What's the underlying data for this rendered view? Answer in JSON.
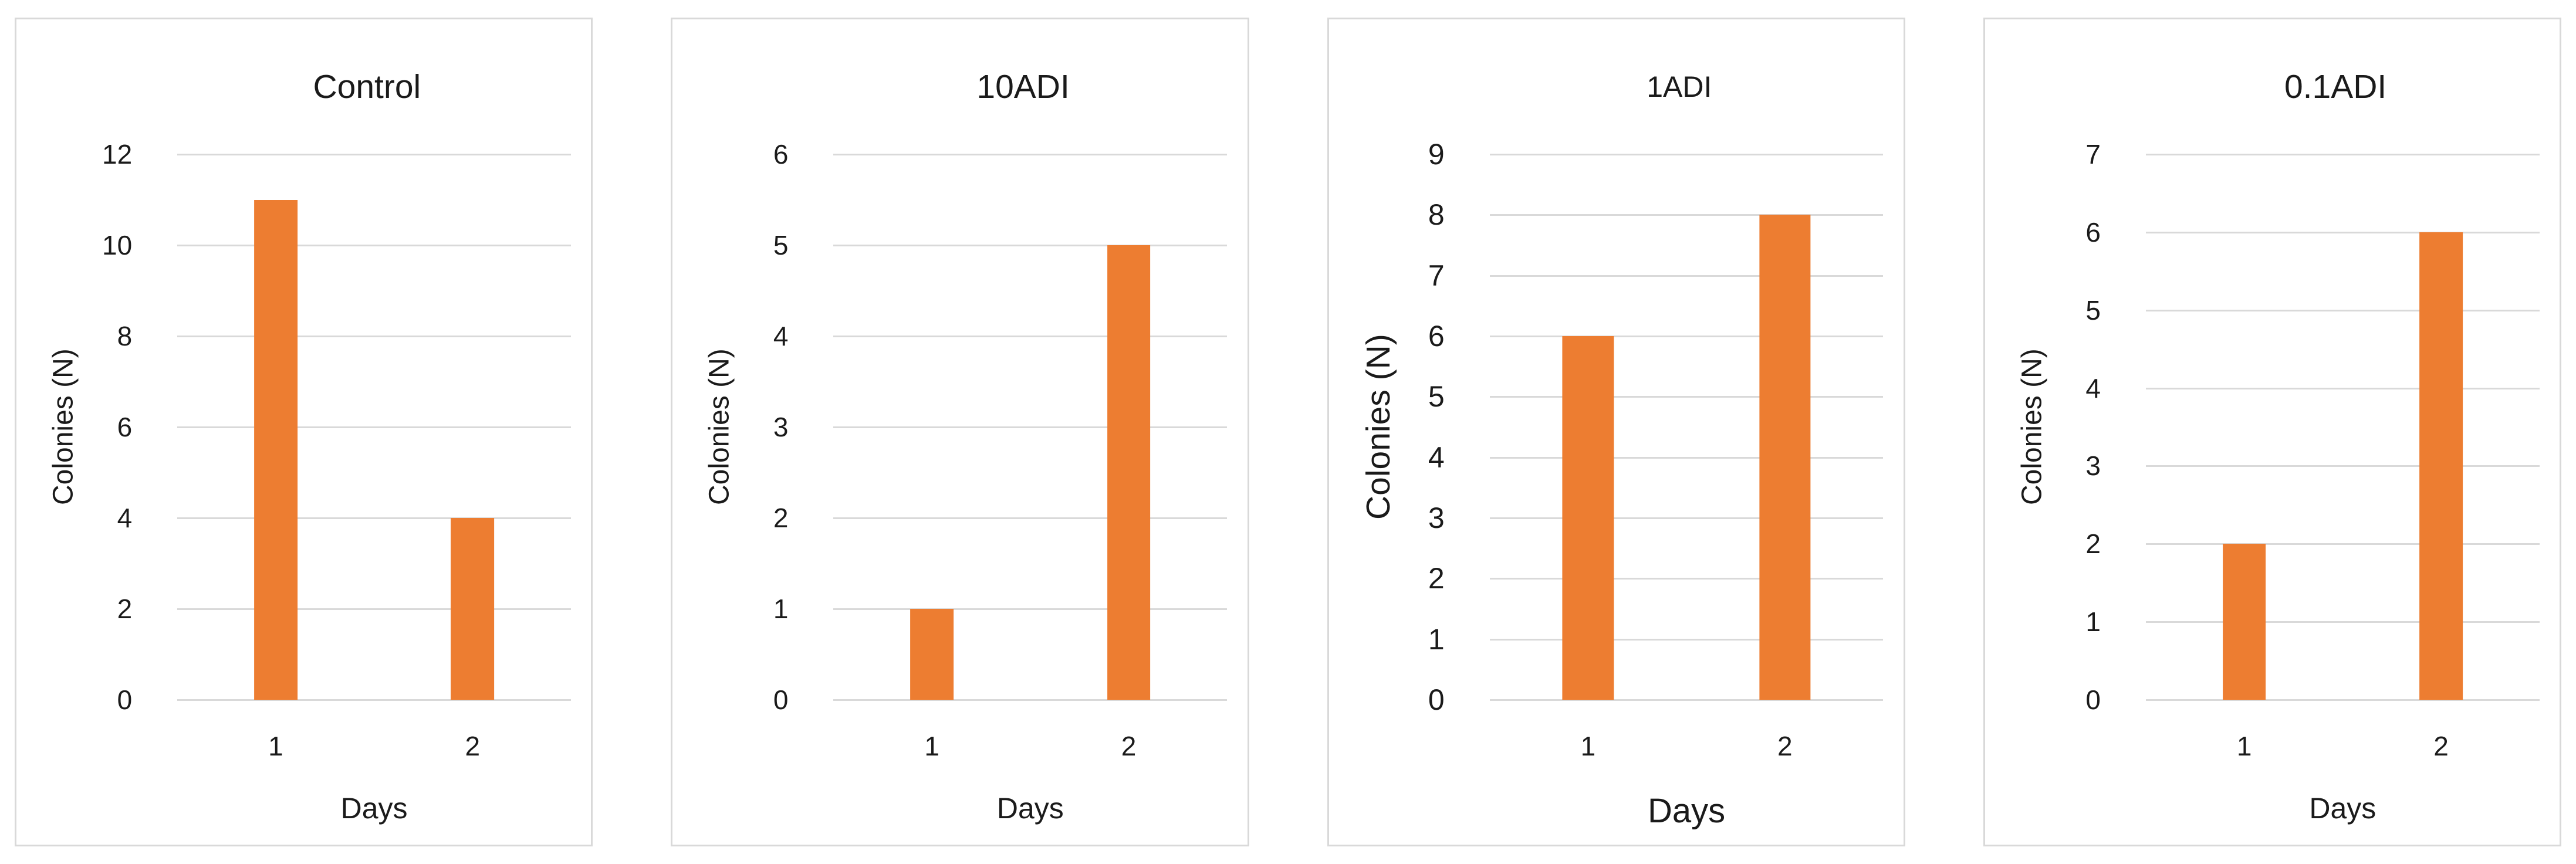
{
  "styles": {
    "bar_color": "#ED7D31",
    "gridline_color": "#D9D9D9",
    "panel_border_color": "#D9D9D9",
    "text_color": "#1A1A1A",
    "background_color": "#FFFFFF"
  },
  "chart_data": [
    {
      "type": "bar",
      "title": "Control",
      "categories": [
        "1",
        "2"
      ],
      "values": [
        11,
        4
      ],
      "xlabel": "Days",
      "ylabel": "Colonies (N)",
      "ylim": [
        0,
        12
      ],
      "yticks": [
        0,
        2,
        4,
        6,
        8,
        10,
        12
      ],
      "grid": true,
      "legend": "none"
    },
    {
      "type": "bar",
      "title": "10ADI",
      "categories": [
        "1",
        "2"
      ],
      "values": [
        1,
        5
      ],
      "xlabel": "Days",
      "ylabel": "Colonies (N)",
      "ylim": [
        0,
        6
      ],
      "yticks": [
        0,
        1,
        2,
        3,
        4,
        5,
        6
      ],
      "grid": true,
      "legend": "none"
    },
    {
      "type": "bar",
      "title": "1ADI",
      "categories": [
        "1",
        "2"
      ],
      "values": [
        6,
        8
      ],
      "xlabel": "Days",
      "ylabel": "Colonies (N)",
      "ylim": [
        0,
        9
      ],
      "yticks": [
        0,
        1,
        2,
        3,
        4,
        5,
        6,
        7,
        8,
        9
      ],
      "grid": true,
      "legend": "none"
    },
    {
      "type": "bar",
      "title": "0.1ADI",
      "categories": [
        "1",
        "2"
      ],
      "values": [
        2,
        6
      ],
      "xlabel": "Days",
      "ylabel": "Colonies (N)",
      "ylim": [
        0,
        7
      ],
      "yticks": [
        0,
        1,
        2,
        3,
        4,
        5,
        6,
        7
      ],
      "grid": true,
      "legend": "none"
    }
  ]
}
